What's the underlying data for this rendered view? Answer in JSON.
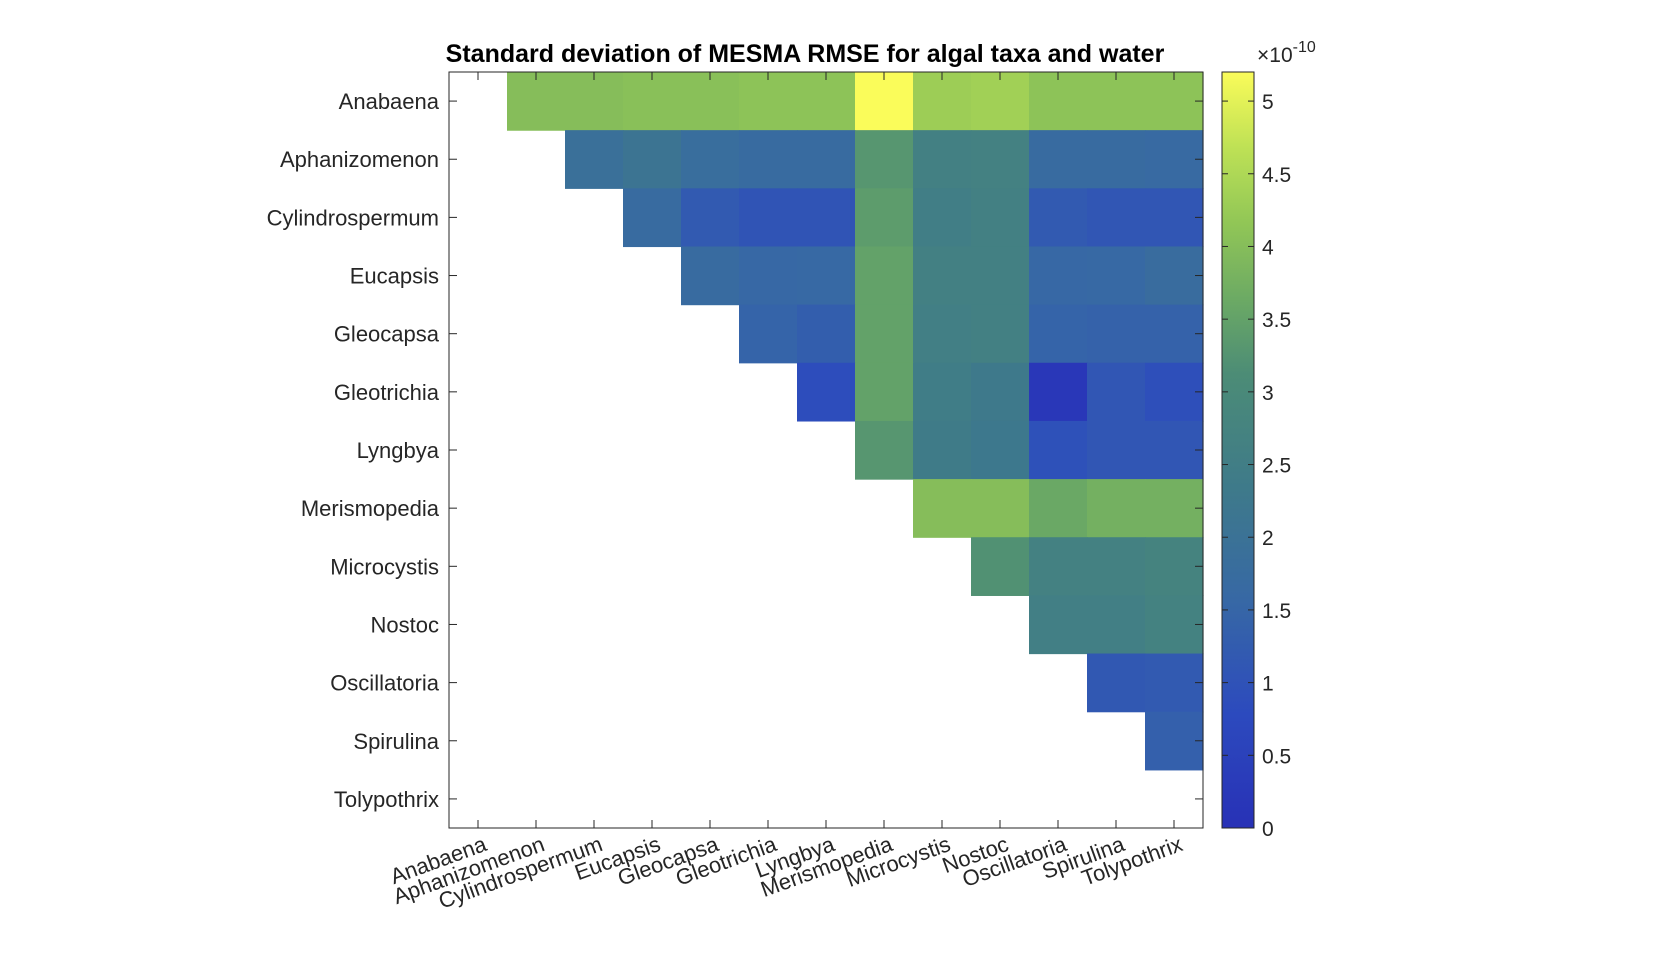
{
  "chart_data": {
    "type": "heatmap",
    "title": "Standard deviation of MESMA RMSE for algal taxa and water",
    "xlabel": "",
    "ylabel": "",
    "categories_x": [
      "Anabaena",
      "Aphanizomenon",
      "Cylindrospermum",
      "Eucapsis",
      "Gleocapsa",
      "Gleotrichia",
      "Lyngbya",
      "Merismopedia",
      "Microcystis",
      "Nostoc",
      "Oscillatoria",
      "Spirulina",
      "Tolypothrix"
    ],
    "categories_y": [
      "Anabaena",
      "Aphanizomenon",
      "Cylindrospermum",
      "Eucapsis",
      "Gleocapsa",
      "Gleotrichia",
      "Lyngbya",
      "Merismopedia",
      "Microcystis",
      "Nostoc",
      "Oscillatoria",
      "Spirulina",
      "Tolypothrix"
    ],
    "values": [
      [
        null,
        4.0,
        4.0,
        4.05,
        4.05,
        4.1,
        4.1,
        5.2,
        4.3,
        4.35,
        4.1,
        4.1,
        4.1
      ],
      [
        null,
        null,
        1.9,
        2.1,
        1.8,
        1.7,
        1.7,
        3.3,
        2.6,
        2.65,
        1.7,
        1.7,
        1.65
      ],
      [
        null,
        null,
        null,
        1.7,
        1.2,
        1.05,
        1.05,
        3.4,
        2.5,
        2.6,
        1.2,
        1.1,
        1.1
      ],
      [
        null,
        null,
        null,
        null,
        1.7,
        1.55,
        1.6,
        3.5,
        2.6,
        2.6,
        1.55,
        1.6,
        1.75
      ],
      [
        null,
        null,
        null,
        null,
        null,
        1.45,
        1.3,
        3.5,
        2.55,
        2.6,
        1.45,
        1.4,
        1.4
      ],
      [
        null,
        null,
        null,
        null,
        null,
        null,
        0.85,
        3.5,
        2.45,
        2.3,
        0.2,
        1.1,
        0.9
      ],
      [
        null,
        null,
        null,
        null,
        null,
        null,
        null,
        3.3,
        2.4,
        2.25,
        0.95,
        1.1,
        1.1
      ],
      [
        null,
        null,
        null,
        null,
        null,
        null,
        null,
        null,
        4.0,
        4.0,
        3.6,
        3.75,
        3.75
      ],
      [
        null,
        null,
        null,
        null,
        null,
        null,
        null,
        null,
        null,
        3.2,
        2.65,
        2.65,
        2.75
      ],
      [
        null,
        null,
        null,
        null,
        null,
        null,
        null,
        null,
        null,
        null,
        2.55,
        2.55,
        2.7
      ],
      [
        null,
        null,
        null,
        null,
        null,
        null,
        null,
        null,
        null,
        null,
        null,
        1.15,
        1.2
      ],
      [
        null,
        null,
        null,
        null,
        null,
        null,
        null,
        null,
        null,
        null,
        null,
        null,
        1.35
      ],
      [
        null,
        null,
        null,
        null,
        null,
        null,
        null,
        null,
        null,
        null,
        null,
        null,
        null
      ]
    ],
    "colorbar": {
      "range": [
        0,
        5.2
      ],
      "ticks": [
        "0",
        "0.5",
        "1",
        "1.5",
        "2",
        "2.5",
        "3",
        "3.5",
        "4",
        "4.5",
        "5"
      ],
      "multiplier_base": "×10",
      "multiplier_exponent": "-10",
      "colormap": "parula"
    },
    "grid": false,
    "legend": "none"
  }
}
